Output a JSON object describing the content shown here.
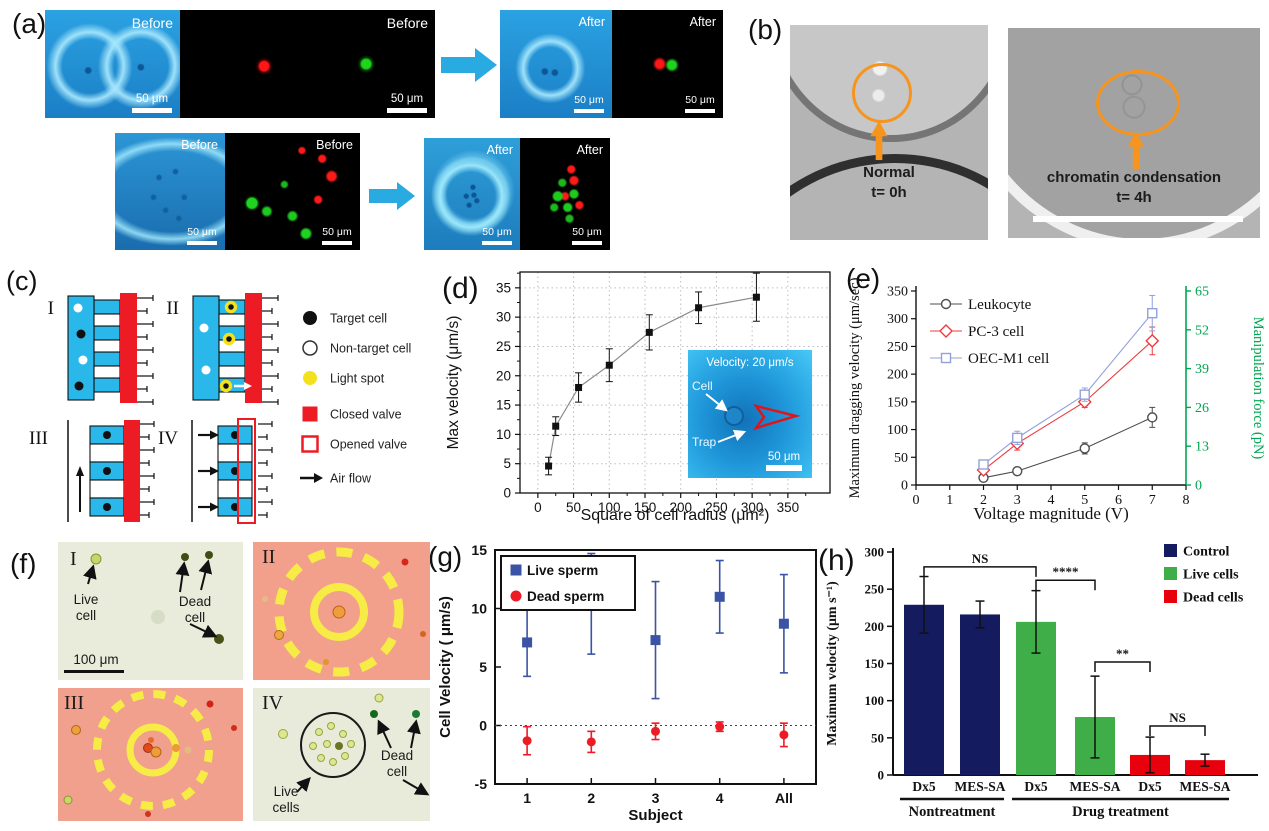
{
  "figure": {
    "panels": {
      "a": {
        "label": "(a)",
        "rows": [
          {
            "tiles": [
              {
                "tag": "Before",
                "scale": "50 μm"
              },
              {
                "tag": "Before",
                "scale": "50 μm"
              },
              {
                "tag": "After",
                "scale": "50 μm"
              },
              {
                "tag": "After",
                "scale": "50 μm"
              }
            ]
          },
          {
            "tiles": [
              {
                "tag": "Before",
                "scale": "50 μm"
              },
              {
                "tag": "Before",
                "scale": "50 μm"
              },
              {
                "tag": "After",
                "scale": "50 μm"
              },
              {
                "tag": "After",
                "scale": "50 μm"
              }
            ]
          }
        ]
      },
      "b": {
        "label": "(b)",
        "images": [
          {
            "caption": "Normal",
            "time": "t= 0h"
          },
          {
            "caption": "chromatin condensation",
            "time": "t= 4h"
          }
        ]
      },
      "c": {
        "label": "(c)",
        "sublabels": [
          "I",
          "II",
          "III",
          "IV"
        ],
        "legend": [
          {
            "symbol": "target-cell",
            "label": "Target cell"
          },
          {
            "symbol": "non-target-cell",
            "label": "Non-target cell"
          },
          {
            "symbol": "light-spot",
            "label": "Light spot"
          },
          {
            "symbol": "closed-valve",
            "label": "Closed valve"
          },
          {
            "symbol": "opened-valve",
            "label": "Opened valve"
          },
          {
            "symbol": "air-flow",
            "label": "Air flow"
          }
        ],
        "colors": {
          "channel": "#2ab7ea",
          "valve": "#ed1c24",
          "light": "#f3e11d"
        }
      },
      "f": {
        "label": "(f)",
        "sublabels": [
          "I",
          "II",
          "III",
          "IV"
        ],
        "annotations": {
          "live_cell": "Live cell",
          "dead_cell": "Dead cell",
          "scale": "100 μm",
          "live_cells": "Live cells",
          "dead_cell2": "Dead cell"
        }
      }
    }
  },
  "chart_data": [
    {
      "id": "d",
      "type": "line",
      "panel_label": "(d)",
      "xlabel": "Square of cell radius (μm²)",
      "ylabel": "Max velocity (μm/s)",
      "xlim": [
        -25,
        409
      ],
      "ylim": [
        0,
        37.7
      ],
      "xticks": [
        0,
        50,
        100,
        150,
        200,
        250,
        300,
        350
      ],
      "yticks": [
        0,
        5,
        10,
        15,
        20,
        25,
        30,
        35
      ],
      "grid": true,
      "x": [
        15,
        25,
        57,
        100,
        156,
        225,
        306
      ],
      "y": [
        4.6,
        11.4,
        18.0,
        21.8,
        27.4,
        31.6,
        33.4
      ],
      "yerr": [
        1.5,
        1.6,
        2.5,
        2.8,
        3.0,
        2.7,
        4.1
      ],
      "line_color": "#8a8a8a",
      "marker": "filled-square",
      "marker_color": "#111111",
      "inset": {
        "velocity_label": "Velocity: 20 μm/s",
        "cell_label": "Cell",
        "trap_label": "Trap",
        "scale_label": "50 μm"
      }
    },
    {
      "id": "e",
      "type": "line",
      "panel_label": "(e)",
      "xlabel": "Voltage magnitude (V)",
      "ylabel": "Maximum dragging velocity (μm/sec)",
      "y2label": "Manipulation force (pN)",
      "y2color": "#00a651",
      "xlim": [
        0,
        8
      ],
      "ylim": [
        0,
        350
      ],
      "y2lim": [
        0,
        65
      ],
      "xticks": [
        0,
        1,
        2,
        3,
        4,
        5,
        6,
        7,
        8
      ],
      "yticks": [
        0,
        50,
        100,
        150,
        200,
        250,
        300,
        350
      ],
      "y2ticks": [
        0,
        13,
        26,
        39,
        52,
        65
      ],
      "x": [
        2,
        3,
        5,
        7
      ],
      "series": [
        {
          "name": "Leukocyte",
          "color": "#4d4d4d",
          "marker": "open-circle",
          "values": [
            13,
            25,
            66,
            122
          ],
          "yerr": [
            5,
            6,
            10,
            18
          ]
        },
        {
          "name": "PC-3 cell",
          "color": "#ee3b3f",
          "marker": "open-diamond",
          "values": [
            27,
            75,
            150,
            260
          ],
          "yerr": [
            6,
            12,
            10,
            25
          ]
        },
        {
          "name": "OEC-M1 cell",
          "color": "#92a1da",
          "marker": "open-square",
          "values": [
            37,
            85,
            163,
            310
          ],
          "yerr": [
            6,
            12,
            12,
            32
          ]
        }
      ]
    },
    {
      "id": "g",
      "type": "scatter",
      "panel_label": "(g)",
      "xlabel": "Subject",
      "ylabel": "Cell Velocity ( μm/s)",
      "categories": [
        "1",
        "2",
        "3",
        "4",
        "All"
      ],
      "ylim": [
        -5,
        15
      ],
      "yticks": [
        -5,
        0,
        5,
        10,
        15
      ],
      "zero_line": true,
      "series": [
        {
          "name": "Live sperm",
          "color": "#3a53a4",
          "marker": "filled-square",
          "values": [
            7.1,
            10.4,
            7.3,
            11.0,
            8.7
          ],
          "yerr": [
            2.9,
            4.3,
            5.0,
            3.1,
            4.2
          ]
        },
        {
          "name": "Dead sperm",
          "color": "#ed1c24",
          "marker": "filled-circle",
          "values": [
            -1.3,
            -1.4,
            -0.5,
            -0.1,
            -0.8
          ],
          "yerr": [
            1.2,
            0.9,
            0.7,
            0.4,
            1.0
          ]
        }
      ]
    },
    {
      "id": "h",
      "type": "bar",
      "panel_label": "(h)",
      "ylabel": "Maximum velocity (μm s⁻¹)",
      "ylim": [
        0,
        300
      ],
      "yticks": [
        0,
        50,
        100,
        150,
        200,
        250,
        300
      ],
      "bars": [
        {
          "label": "Dx5",
          "series": "Control",
          "value": 229,
          "err": 38
        },
        {
          "label": "MES-SA",
          "series": "Control",
          "value": 216,
          "err": 18
        },
        {
          "label": "Dx5",
          "series": "Live cells",
          "value": 206,
          "err": 42
        },
        {
          "label": "MES-SA",
          "series": "Live cells",
          "value": 78,
          "err": 55
        },
        {
          "label": "Dx5",
          "series": "Dead cells",
          "value": 27,
          "err": 24
        },
        {
          "label": "MES-SA",
          "series": "Dead cells",
          "value": 20,
          "err": 8
        }
      ],
      "groups": [
        {
          "label": "Nontreatment",
          "from": 0,
          "to": 1
        },
        {
          "label": "Drug treatment",
          "from": 2,
          "to": 5
        }
      ],
      "legend": [
        {
          "label": "Control",
          "color": "#141b5e"
        },
        {
          "label": "Live cells",
          "color": "#3fae49"
        },
        {
          "label": "Dead cells",
          "color": "#e8000d"
        }
      ],
      "significance": [
        {
          "label": "NS",
          "from": 0,
          "to": 2,
          "y": 280
        },
        {
          "label": "****",
          "from": 2,
          "to": 3,
          "y": 262
        },
        {
          "label": "**",
          "from": 3,
          "to": 4,
          "y": 152
        },
        {
          "label": "NS",
          "from": 4,
          "to": 5,
          "y": 66
        }
      ]
    }
  ]
}
